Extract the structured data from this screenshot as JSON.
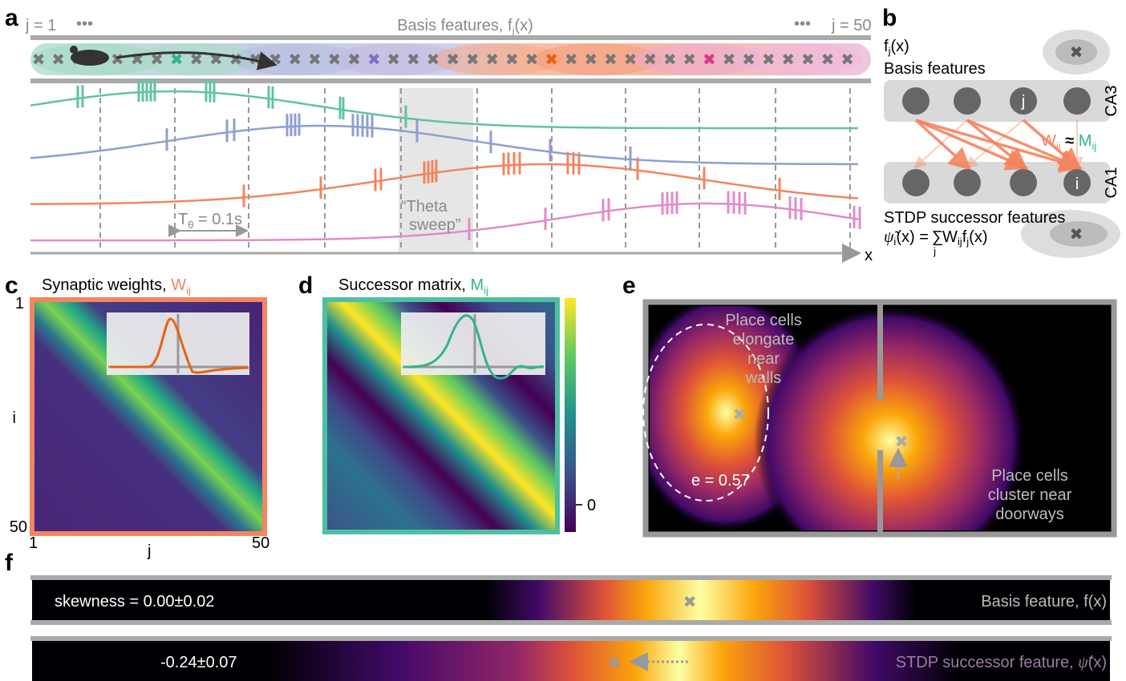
{
  "panel_a": {
    "label": "a",
    "j_first": "j = 1",
    "dots_left": "•••",
    "title": "Basis features, f",
    "title_sub": "j",
    "title_arg": "(x)",
    "dots_right": "•••",
    "j_last": "j = 50",
    "theta_symbol": "T",
    "theta_sub": "θ",
    "theta_value": " = 0.1s",
    "sweep_lines": [
      "“Theta",
      "sweep”"
    ],
    "x_axis": "x"
  },
  "panel_b": {
    "label": "b",
    "basis_func": "f",
    "basis_sub": "j",
    "basis_arg": "(x)",
    "basis_title": "Basis features",
    "ca3": "CA3",
    "ca1": "CA1",
    "node_j": "j",
    "node_i": "i",
    "w": "W",
    "w_sub": "ij",
    "approx": " ≈ ",
    "m": "M",
    "m_sub": "ij",
    "stdp_title": "STDP successor features",
    "psi": "ψ̃",
    "psi_sub": "i",
    "formula_left": "(x) =",
    "sum": "∑",
    "sum_sub": "j",
    "formula_w": "W",
    "formula_w_sub": "ij",
    "formula_f": "f",
    "formula_f_sub": "j",
    "formula_arg": "(x)"
  },
  "panel_c": {
    "label": "c",
    "title": "Synaptic weights, ",
    "w": "W",
    "w_sub": "ij",
    "y_top": "1",
    "y_label": "i",
    "y_bottom": "50",
    "x_left": "1",
    "x_label": "j",
    "x_right": "50"
  },
  "panel_d": {
    "label": "d",
    "title": "Successor matrix, ",
    "m": "M",
    "m_sub": "ij",
    "colorbar_tick": "0"
  },
  "panel_e": {
    "label": "e",
    "wall_note": [
      "Place cells",
      "elongate",
      "near",
      "walls"
    ],
    "eccentricity": "e = 0.57",
    "door_note": [
      "Place cells",
      "cluster near",
      "doorways"
    ]
  },
  "panel_f": {
    "label": "f",
    "skew_basis": "skewness = 0.00±0.02",
    "basis_label": "Basis feature, f(x)",
    "skew_stdp": "-0.24±0.07",
    "stdp_label": "STDP successor feature, ",
    "psi": "ψ̃",
    "psi_arg": "(x)"
  }
}
